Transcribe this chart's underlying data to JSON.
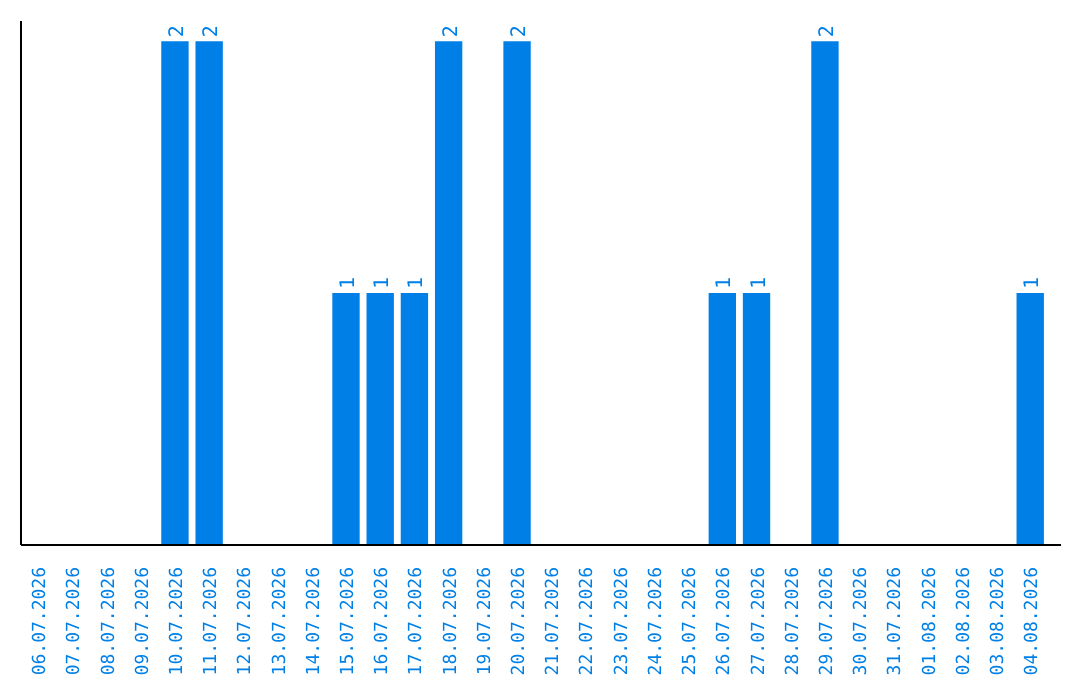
{
  "chart_data": {
    "type": "bar",
    "color": "#0080e6",
    "categories": [
      "06.07.2026",
      "07.07.2026",
      "08.07.2026",
      "09.07.2026",
      "10.07.2026",
      "11.07.2026",
      "12.07.2026",
      "13.07.2026",
      "14.07.2026",
      "15.07.2026",
      "16.07.2026",
      "17.07.2026",
      "18.07.2026",
      "19.07.2026",
      "20.07.2026",
      "21.07.2026",
      "22.07.2026",
      "23.07.2026",
      "24.07.2026",
      "25.07.2026",
      "26.07.2026",
      "27.07.2026",
      "28.07.2026",
      "29.07.2026",
      "30.07.2026",
      "31.07.2026",
      "01.08.2026",
      "02.08.2026",
      "03.08.2026",
      "04.08.2026"
    ],
    "values": [
      0,
      0,
      0,
      0,
      2,
      2,
      0,
      0,
      0,
      1,
      1,
      1,
      2,
      0,
      2,
      0,
      0,
      0,
      0,
      0,
      1,
      1,
      0,
      2,
      0,
      0,
      0,
      0,
      0,
      1
    ],
    "value_labels": [
      null,
      null,
      null,
      null,
      "2",
      "2",
      null,
      null,
      null,
      "1",
      "1",
      "1",
      "2",
      null,
      "2",
      null,
      null,
      null,
      null,
      null,
      "1",
      "1",
      null,
      "2",
      null,
      null,
      null,
      null,
      null,
      "1"
    ],
    "grid": false,
    "tick_labels": "x"
  }
}
